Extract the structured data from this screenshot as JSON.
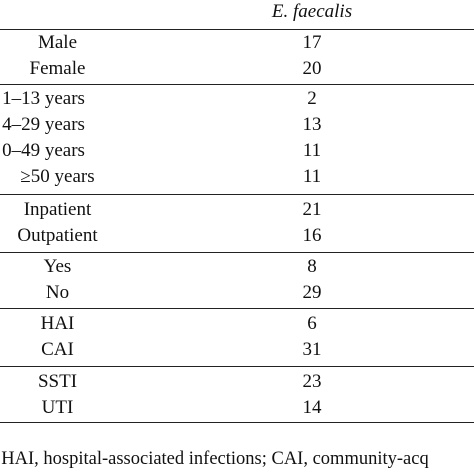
{
  "table": {
    "column_header": "E. faecalis",
    "groups": [
      {
        "rows": [
          {
            "label": "Male",
            "value": "17"
          },
          {
            "label": "Female",
            "value": "20"
          }
        ]
      },
      {
        "rows": [
          {
            "label": "1–13 years",
            "value": "2"
          },
          {
            "label": "4–29 years",
            "value": "13"
          },
          {
            "label": "0–49 years",
            "value": "11"
          },
          {
            "label": "≥50 years",
            "value": "11"
          }
        ]
      },
      {
        "rows": [
          {
            "label": "Inpatient",
            "value": "21"
          },
          {
            "label": "Outpatient",
            "value": "16"
          }
        ]
      },
      {
        "rows": [
          {
            "label": "Yes",
            "value": "8"
          },
          {
            "label": "No",
            "value": "29"
          }
        ]
      },
      {
        "rows": [
          {
            "label": "HAI",
            "value": "6"
          },
          {
            "label": "CAI",
            "value": "31"
          }
        ]
      },
      {
        "rows": [
          {
            "label": "SSTI",
            "value": "23"
          },
          {
            "label": "UTI",
            "value": "14"
          }
        ]
      }
    ],
    "footnote": ". HAI, hospital-associated infections; CAI, community-acq"
  }
}
